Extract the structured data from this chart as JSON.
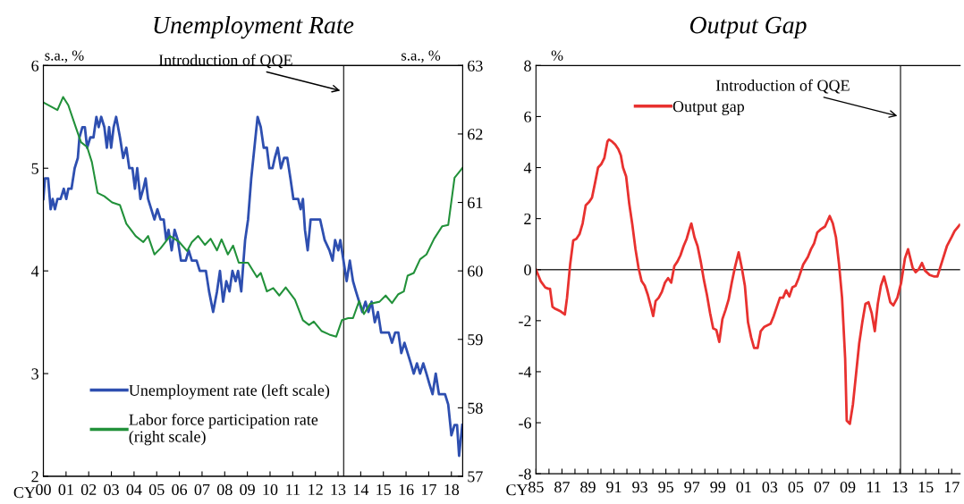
{
  "chart_data": [
    {
      "type": "line",
      "title": "Unemployment Rate",
      "ylabel": "s.a., %",
      "y2label": "s.a., %",
      "xlabel": "CY",
      "xlim": [
        2000,
        2018.5
      ],
      "xticks": [
        {
          "value": 2000,
          "label": "00"
        },
        {
          "value": 2001,
          "label": "01"
        },
        {
          "value": 2002,
          "label": "02"
        },
        {
          "value": 2003,
          "label": "03"
        },
        {
          "value": 2004,
          "label": "04"
        },
        {
          "value": 2005,
          "label": "05"
        },
        {
          "value": 2006,
          "label": "06"
        },
        {
          "value": 2007,
          "label": "07"
        },
        {
          "value": 2008,
          "label": "08"
        },
        {
          "value": 2009,
          "label": "09"
        },
        {
          "value": 2010,
          "label": "10"
        },
        {
          "value": 2011,
          "label": "11"
        },
        {
          "value": 2012,
          "label": "12"
        },
        {
          "value": 2013,
          "label": "13"
        },
        {
          "value": 2014,
          "label": "14"
        },
        {
          "value": 2015,
          "label": "15"
        },
        {
          "value": 2016,
          "label": "16"
        },
        {
          "value": 2017,
          "label": "17"
        },
        {
          "value": 2018,
          "label": "18"
        }
      ],
      "ylim": [
        2,
        6
      ],
      "yticks": [
        2,
        3,
        4,
        5,
        6
      ],
      "y2lim": [
        57,
        63
      ],
      "y2ticks": [
        57,
        58,
        59,
        60,
        61,
        62,
        63
      ],
      "legend": "bottom left",
      "grid": false,
      "line_style": "solid",
      "marker": "none",
      "ref_lines": [
        {
          "axis": "x",
          "value": 2013.25,
          "color": "#333333"
        }
      ],
      "annotations": [
        {
          "text": "Introduction of QQE",
          "x": 2013.2,
          "y": 5.75
        }
      ],
      "series": [
        {
          "name": "Unemployment rate (left scale)",
          "color": "#2e4fb0",
          "x": [
            2000.0,
            2000.07,
            2000.21,
            2000.32,
            2000.41,
            2000.51,
            2000.62,
            2000.76,
            2000.9,
            2001.01,
            2001.1,
            2001.24,
            2001.38,
            2001.52,
            2001.59,
            2001.72,
            2001.83,
            2001.93,
            2002.07,
            2002.21,
            2002.34,
            2002.44,
            2002.55,
            2002.69,
            2002.8,
            2002.9,
            2002.99,
            2003.1,
            2003.21,
            2003.38,
            2003.52,
            2003.66,
            2003.79,
            2003.93,
            2004.04,
            2004.14,
            2004.28,
            2004.41,
            2004.51,
            2004.62,
            2004.76,
            2004.9,
            2005.03,
            2005.17,
            2005.31,
            2005.42,
            2005.52,
            2005.66,
            2005.79,
            2005.93,
            2006.07,
            2006.28,
            2006.41,
            2006.55,
            2006.76,
            2006.9,
            2007.17,
            2007.31,
            2007.49,
            2007.66,
            2007.79,
            2007.93,
            2008.07,
            2008.21,
            2008.34,
            2008.48,
            2008.59,
            2008.73,
            2008.83,
            2008.9,
            2009.03,
            2009.17,
            2009.31,
            2009.45,
            2009.59,
            2009.72,
            2009.86,
            2009.97,
            2010.11,
            2010.21,
            2010.34,
            2010.48,
            2010.62,
            2010.76,
            2010.9,
            2011.03,
            2011.24,
            2011.35,
            2011.45,
            2011.54,
            2011.66,
            2011.79,
            2012.21,
            2012.41,
            2012.62,
            2012.76,
            2012.87,
            2013.01,
            2013.1,
            2013.24,
            2013.38,
            2013.52,
            2013.66,
            2013.79,
            2013.93,
            2014.07,
            2014.21,
            2014.34,
            2014.48,
            2014.62,
            2014.76,
            2014.9,
            2015.03,
            2015.24,
            2015.38,
            2015.52,
            2015.66,
            2015.79,
            2015.93,
            2016.07,
            2016.21,
            2016.34,
            2016.48,
            2016.62,
            2016.76,
            2016.9,
            2017.03,
            2017.17,
            2017.31,
            2017.45,
            2017.72,
            2017.86,
            2018.0,
            2018.14,
            2018.25,
            2018.34,
            2018.48
          ],
          "values": [
            4.7,
            4.9,
            4.9,
            4.6,
            4.7,
            4.6,
            4.7,
            4.7,
            4.8,
            4.7,
            4.8,
            4.8,
            5.0,
            5.1,
            5.3,
            5.4,
            5.4,
            5.2,
            5.3,
            5.3,
            5.5,
            5.4,
            5.5,
            5.4,
            5.2,
            5.4,
            5.2,
            5.4,
            5.5,
            5.3,
            5.1,
            5.2,
            5.0,
            5.0,
            4.8,
            5.0,
            4.7,
            4.8,
            4.9,
            4.7,
            4.6,
            4.5,
            4.6,
            4.5,
            4.5,
            4.3,
            4.4,
            4.2,
            4.4,
            4.3,
            4.1,
            4.1,
            4.2,
            4.1,
            4.1,
            4.0,
            4.0,
            3.8,
            3.6,
            3.8,
            4.0,
            3.7,
            3.9,
            3.8,
            4.0,
            3.9,
            4.0,
            3.8,
            4.1,
            4.3,
            4.5,
            4.9,
            5.2,
            5.5,
            5.4,
            5.2,
            5.2,
            5.0,
            5.0,
            5.1,
            5.2,
            5.0,
            5.1,
            5.1,
            4.9,
            4.7,
            4.7,
            4.6,
            4.7,
            4.4,
            4.2,
            4.5,
            4.5,
            4.3,
            4.2,
            4.1,
            4.3,
            4.2,
            4.3,
            4.1,
            3.9,
            4.1,
            3.9,
            3.8,
            3.7,
            3.6,
            3.7,
            3.6,
            3.7,
            3.5,
            3.6,
            3.4,
            3.4,
            3.4,
            3.3,
            3.4,
            3.4,
            3.2,
            3.3,
            3.2,
            3.1,
            3.0,
            3.1,
            3.0,
            3.1,
            3.0,
            2.9,
            2.8,
            3.0,
            2.8,
            2.8,
            2.7,
            2.4,
            2.5,
            2.5,
            2.2,
            2.5
          ]
        },
        {
          "name": "Labor force participation rate\n(right scale)",
          "color": "#22913a",
          "axis": "y2",
          "x": [
            2000.0,
            2000.62,
            2000.87,
            2001.1,
            2001.45,
            2001.66,
            2001.93,
            2002.14,
            2002.39,
            2002.69,
            2003.03,
            2003.38,
            2003.66,
            2004.07,
            2004.41,
            2004.62,
            2004.9,
            2005.17,
            2005.59,
            2006.0,
            2006.34,
            2006.55,
            2006.83,
            2007.13,
            2007.38,
            2007.66,
            2007.86,
            2008.14,
            2008.37,
            2008.62,
            2009.03,
            2009.42,
            2009.59,
            2009.86,
            2010.14,
            2010.41,
            2010.69,
            2011.1,
            2011.45,
            2011.72,
            2011.93,
            2012.28,
            2012.62,
            2012.92,
            2013.17,
            2013.45,
            2013.66,
            2013.93,
            2014.14,
            2014.41,
            2014.83,
            2015.1,
            2015.38,
            2015.66,
            2015.9,
            2016.07,
            2016.34,
            2016.62,
            2016.9,
            2017.24,
            2017.59,
            2017.86,
            2018.14,
            2018.48
          ],
          "values": [
            62.46,
            62.35,
            62.54,
            62.42,
            62.08,
            61.88,
            61.81,
            61.59,
            61.14,
            61.09,
            61.0,
            60.96,
            60.69,
            60.51,
            60.42,
            60.51,
            60.24,
            60.33,
            60.51,
            60.42,
            60.29,
            60.42,
            60.51,
            60.38,
            60.47,
            60.3,
            60.46,
            60.24,
            60.37,
            60.12,
            60.12,
            59.91,
            59.97,
            59.7,
            59.75,
            59.64,
            59.76,
            59.58,
            59.28,
            59.21,
            59.26,
            59.12,
            59.07,
            59.04,
            59.28,
            59.31,
            59.31,
            59.56,
            59.37,
            59.52,
            59.55,
            59.64,
            59.53,
            59.66,
            59.7,
            59.93,
            59.97,
            60.17,
            60.24,
            60.47,
            60.65,
            60.67,
            61.36,
            61.5
          ]
        }
      ]
    },
    {
      "type": "line",
      "title": "Output Gap",
      "ylabel": "%",
      "xlabel": "CY",
      "xlim": [
        1985,
        2017.65
      ],
      "xticks": [
        {
          "value": 1985,
          "label": "85"
        },
        {
          "value": 1986,
          "label": null
        },
        {
          "value": 1987,
          "label": "87"
        },
        {
          "value": 1988,
          "label": null
        },
        {
          "value": 1989,
          "label": "89"
        },
        {
          "value": 1990,
          "label": null
        },
        {
          "value": 1991,
          "label": "91"
        },
        {
          "value": 1992,
          "label": null
        },
        {
          "value": 1993,
          "label": "93"
        },
        {
          "value": 1994,
          "label": null
        },
        {
          "value": 1995,
          "label": "95"
        },
        {
          "value": 1996,
          "label": null
        },
        {
          "value": 1997,
          "label": "97"
        },
        {
          "value": 1998,
          "label": null
        },
        {
          "value": 1999,
          "label": "99"
        },
        {
          "value": 2000,
          "label": null
        },
        {
          "value": 2001,
          "label": "01"
        },
        {
          "value": 2002,
          "label": null
        },
        {
          "value": 2003,
          "label": "03"
        },
        {
          "value": 2004,
          "label": null
        },
        {
          "value": 2005,
          "label": "05"
        },
        {
          "value": 2006,
          "label": null
        },
        {
          "value": 2007,
          "label": "07"
        },
        {
          "value": 2008,
          "label": null
        },
        {
          "value": 2009,
          "label": "09"
        },
        {
          "value": 2010,
          "label": null
        },
        {
          "value": 2011,
          "label": "11"
        },
        {
          "value": 2012,
          "label": null
        },
        {
          "value": 2013,
          "label": "13"
        },
        {
          "value": 2014,
          "label": null
        },
        {
          "value": 2015,
          "label": "15"
        },
        {
          "value": 2016,
          "label": null
        },
        {
          "value": 2017,
          "label": "17"
        }
      ],
      "ylim": [
        -8,
        8
      ],
      "yticks": [
        -8,
        -6,
        -4,
        -2,
        0,
        2,
        4,
        6,
        8
      ],
      "legend": "top left",
      "grid": false,
      "line_style": "solid",
      "marker": "none",
      "ref_lines": [
        {
          "axis": "x",
          "value": 2013.06,
          "color": "#333333"
        },
        {
          "axis": "y",
          "value": 0,
          "color": "#333333"
        }
      ],
      "annotations": [
        {
          "text": "Introduction of QQE",
          "x": 2013.0,
          "y": 6.0
        }
      ],
      "series": [
        {
          "name": "Output gap",
          "color": "#e8312f",
          "x": [
            1985.0,
            1985.36,
            1985.72,
            1985.96,
            1986.08,
            1986.27,
            1986.44,
            1986.67,
            1986.91,
            1987.22,
            1987.39,
            1987.63,
            1987.87,
            1988.11,
            1988.35,
            1988.59,
            1988.83,
            1989.07,
            1989.31,
            1989.55,
            1989.78,
            1990.02,
            1990.26,
            1990.5,
            1990.62,
            1990.86,
            1991.1,
            1991.34,
            1991.53,
            1991.7,
            1991.94,
            1992.18,
            1992.42,
            1992.66,
            1992.89,
            1993.13,
            1993.37,
            1993.61,
            1993.85,
            1994.02,
            1994.21,
            1994.45,
            1994.69,
            1994.93,
            1995.17,
            1995.41,
            1995.65,
            1995.89,
            1996.12,
            1996.36,
            1996.6,
            1996.84,
            1996.96,
            1997.2,
            1997.44,
            1997.68,
            1997.92,
            1998.16,
            1998.4,
            1998.64,
            1998.88,
            1999.11,
            1999.35,
            1999.59,
            1999.83,
            2000.07,
            2000.31,
            2000.6,
            2000.84,
            2001.08,
            2001.32,
            2001.56,
            2001.79,
            2002.06,
            2002.3,
            2002.58,
            2002.82,
            2003.06,
            2003.3,
            2003.54,
            2003.78,
            2004.02,
            2004.26,
            2004.5,
            2004.74,
            2004.98,
            2005.22,
            2005.57,
            2005.93,
            2006.17,
            2006.41,
            2006.65,
            2006.89,
            2007.25,
            2007.61,
            2007.85,
            2008.09,
            2008.33,
            2008.56,
            2008.8,
            2008.92,
            2009.16,
            2009.4,
            2009.64,
            2009.88,
            2010.12,
            2010.36,
            2010.6,
            2010.84,
            2011.08,
            2011.31,
            2011.55,
            2011.79,
            2012.03,
            2012.27,
            2012.51,
            2012.82,
            2013.11,
            2013.4,
            2013.64,
            2013.99,
            2014.23,
            2014.47,
            2014.71,
            2014.95,
            2015.31,
            2015.67,
            2015.9,
            2016.26,
            2016.63,
            2016.99,
            2017.22,
            2017.61
          ],
          "values": [
            0,
            -0.45,
            -0.7,
            -0.75,
            -0.75,
            -1.46,
            -1.52,
            -1.58,
            -1.64,
            -1.76,
            -1.1,
            0.2,
            1.15,
            1.21,
            1.39,
            1.81,
            2.52,
            2.64,
            2.82,
            3.41,
            4.0,
            4.13,
            4.37,
            5.02,
            5.1,
            5.02,
            4.9,
            4.72,
            4.48,
            4.0,
            3.65,
            2.58,
            1.75,
            0.8,
            0.08,
            -0.45,
            -0.63,
            -0.99,
            -1.46,
            -1.82,
            -1.23,
            -1.1,
            -0.87,
            -0.51,
            -0.33,
            -0.51,
            0.14,
            0.32,
            0.56,
            0.92,
            1.21,
            1.63,
            1.81,
            1.27,
            0.92,
            0.32,
            -0.39,
            -0.99,
            -1.7,
            -2.3,
            -2.36,
            -2.83,
            -1.94,
            -1.58,
            -1.17,
            -0.51,
            0.08,
            0.68,
            0.08,
            -0.63,
            -2.06,
            -2.65,
            -3.07,
            -3.07,
            -2.41,
            -2.24,
            -2.18,
            -2.12,
            -1.82,
            -1.46,
            -1.1,
            -1.1,
            -0.81,
            -1.05,
            -0.69,
            -0.63,
            -0.33,
            0.2,
            0.5,
            0.8,
            1.03,
            1.45,
            1.57,
            1.69,
            2.1,
            1.81,
            1.27,
            0.2,
            -1.1,
            -3.49,
            -5.92,
            -6.04,
            -5.27,
            -4.08,
            -2.89,
            -2.06,
            -1.34,
            -1.28,
            -1.7,
            -2.41,
            -1.34,
            -0.63,
            -0.27,
            -0.75,
            -1.28,
            -1.4,
            -1.1,
            -0.51,
            0.44,
            0.8,
            0.08,
            -0.1,
            0.02,
            0.26,
            -0.04,
            -0.21,
            -0.27,
            -0.27,
            0.32,
            0.92,
            1.27,
            1.51,
            1.75
          ]
        }
      ]
    }
  ]
}
